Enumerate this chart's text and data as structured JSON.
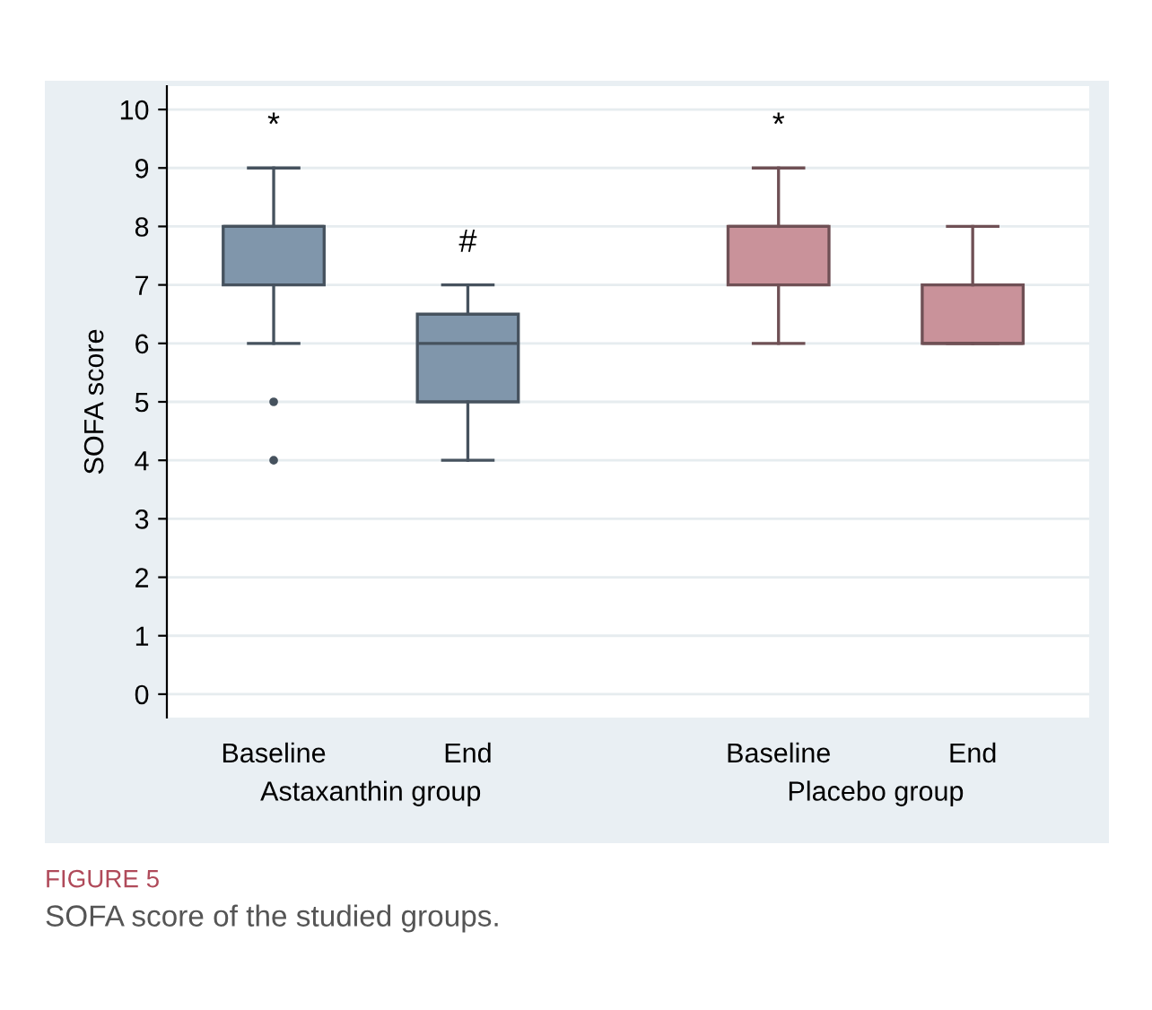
{
  "chart_data": {
    "type": "box",
    "ylabel": "SOFA score",
    "categories": [
      "Baseline",
      "End",
      "Baseline",
      "End"
    ],
    "boxes": [
      {
        "low": 6,
        "q1": 7,
        "median": 8,
        "q3": 8,
        "high": 9,
        "outliers": [
          5,
          4
        ]
      },
      {
        "low": 4,
        "q1": 5,
        "median": 6,
        "q3": 6.5,
        "high": 7
      },
      {
        "low": 6,
        "q1": 7,
        "median": 8,
        "q3": 8,
        "high": 9
      },
      {
        "low": 6,
        "q1": 6,
        "median": 6,
        "q3": 7,
        "high": 8
      }
    ],
    "colors": [
      "#8096ab",
      "#8096ab",
      "#c9929a",
      "#c9929a"
    ],
    "ylim": [
      -0.4,
      10.4
    ],
    "yticks": [
      0,
      1,
      2,
      3,
      4,
      5,
      6,
      7,
      8,
      9,
      10
    ],
    "grid": "y",
    "annotations": [
      "*",
      "#",
      "*",
      "Astaxanthin group",
      "Placebo group",
      "FIGURE 5",
      "SOFA score of the studied groups."
    ]
  }
}
